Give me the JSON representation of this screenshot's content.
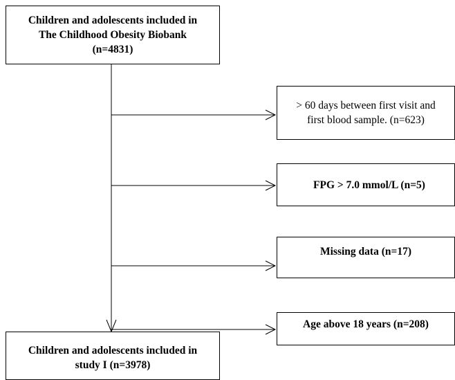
{
  "top_box": {
    "line1": "Children and adolescents included in",
    "line2": "The Childhood Obesity Biobank",
    "line3": "(n=4831)"
  },
  "exclusions": [
    {
      "line1": "> 60 days between first visit and",
      "line2": "first blood sample. (n=623)"
    },
    {
      "line1": "FPG > 7.0 mmol/L (n=5)"
    },
    {
      "line1": "Missing data (n=17)"
    },
    {
      "line1": "Age above 18 years (n=208)"
    }
  ],
  "bottom_box": {
    "line1": "Children and adolescents included in",
    "line2": "study I (n=3978)"
  }
}
